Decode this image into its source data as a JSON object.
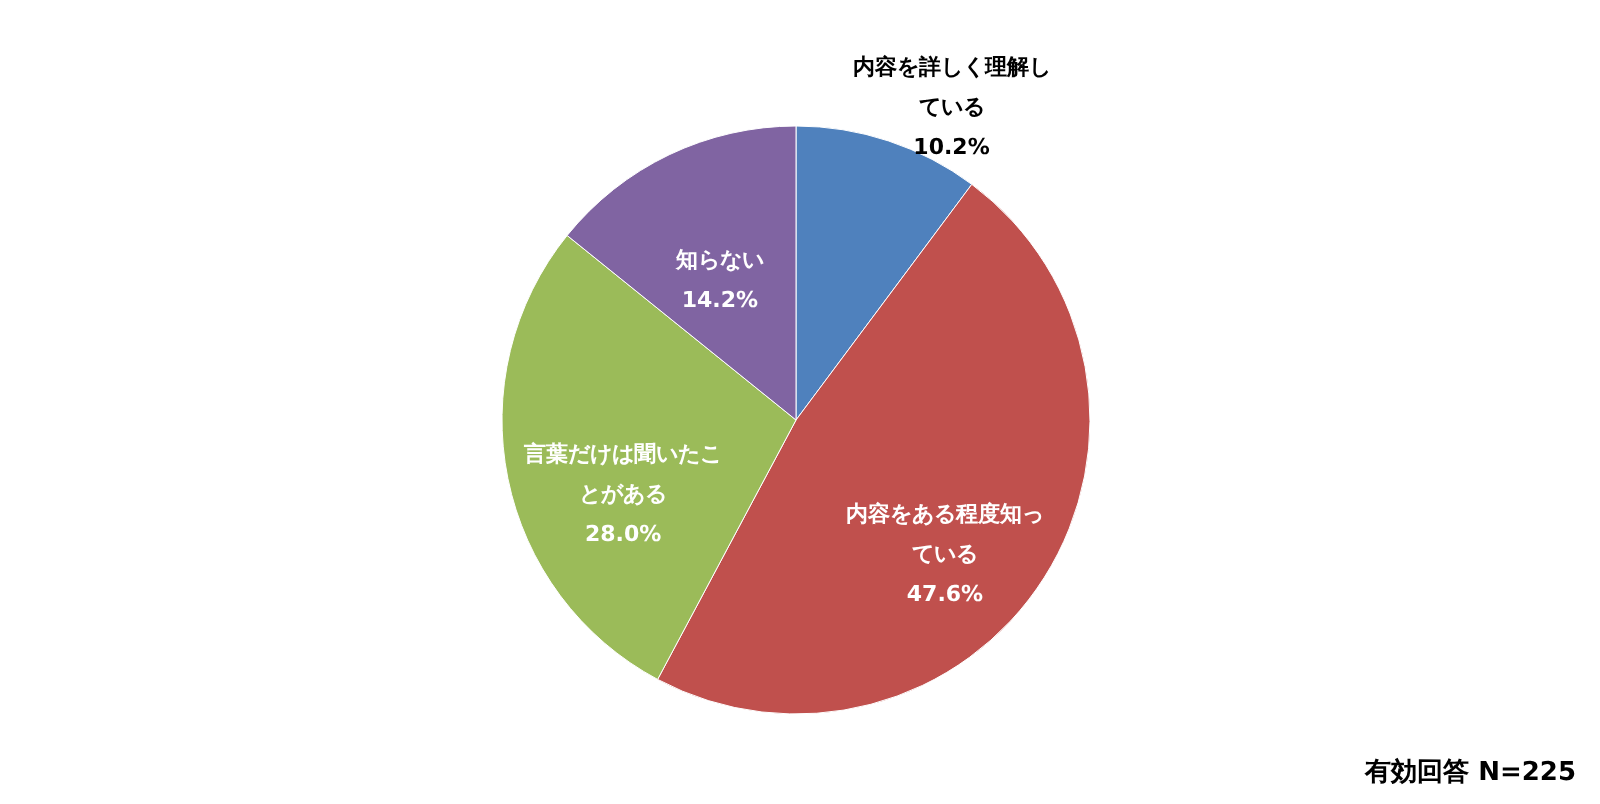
{
  "chart_data": {
    "type": "pie",
    "categories": [
      "内容を詳しく理解している",
      "内容をある程度知っている",
      "言葉だけは聞いたことがある",
      "知らない"
    ],
    "values": [
      10.2,
      47.6,
      28.0,
      14.2
    ],
    "value_labels": [
      "10.2%",
      "47.6%",
      "28.0%",
      "14.2%"
    ],
    "colors": [
      "#4f81bd",
      "#c0504d",
      "#9bbb59",
      "#8064a2"
    ],
    "annotations": [
      "有効回答 N=225"
    ]
  }
}
